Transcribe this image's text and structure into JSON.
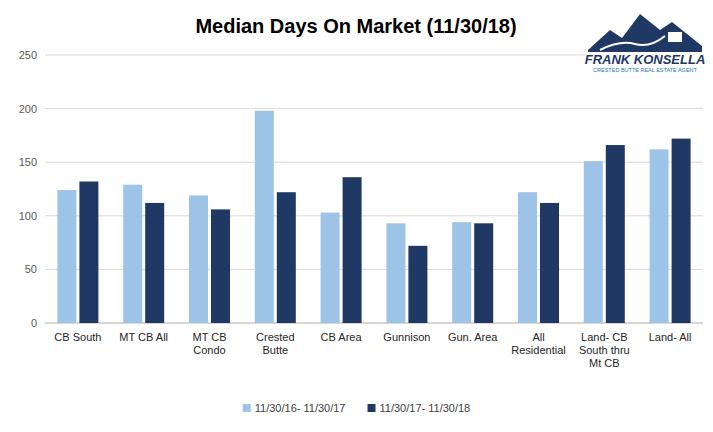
{
  "chart_data": {
    "type": "bar",
    "title": "Median Days On Market (11/30/18)",
    "annotations": [
      "FRANK KONSELLA",
      "CRESTED BUTTE REAL ESTATE AGENT"
    ],
    "categories": [
      "CB South",
      "MT CB All",
      "MT CB Condo",
      "Crested Butte",
      "CB Area",
      "Gunnison",
      "Gun. Area",
      "All Residential",
      "Land- CB South thru Mt CB",
      "Land- All"
    ],
    "series": [
      {
        "name": "11/30/16- 11/30/17",
        "color": "#9dc3e6",
        "values": [
          124,
          129,
          119,
          198,
          103,
          93,
          94,
          122,
          151,
          162
        ]
      },
      {
        "name": "11/30/17- 11/30/18",
        "color": "#203864",
        "values": [
          132,
          112,
          106,
          122,
          136,
          72,
          93,
          112,
          166,
          172
        ]
      }
    ],
    "ylim": [
      0,
      250
    ],
    "yticks": [
      0,
      50,
      100,
      150,
      200,
      250
    ],
    "grid": true,
    "legend": "bottom"
  }
}
